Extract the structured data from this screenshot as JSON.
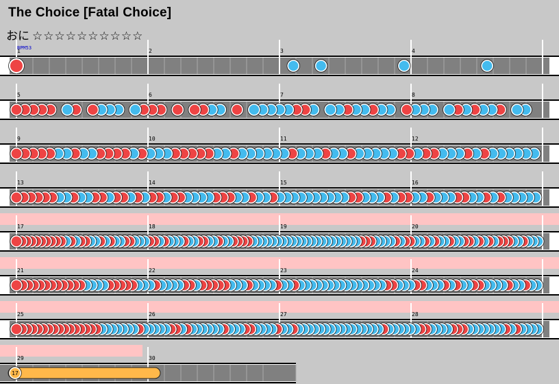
{
  "song": {
    "title": "The Choice [Fatal Choice]",
    "course_label": "おに",
    "difficulty_stars": "☆☆☆☆☆☆☆☆☆☆",
    "bpm_label": "BPM53"
  },
  "measure_numbers": [
    "1",
    "2",
    "3",
    "4",
    "5",
    "6",
    "7",
    "8",
    "9",
    "10",
    "11",
    "12",
    "13",
    "14",
    "15",
    "16",
    "17",
    "18",
    "19",
    "20",
    "21",
    "22",
    "23",
    "24",
    "25",
    "26",
    "27",
    "28",
    "29",
    "30"
  ],
  "gogo_rows": [
    4,
    5,
    6,
    7
  ],
  "colors": {
    "don": "#ee4444",
    "ka": "#44bbee",
    "lane": "#808080",
    "gogo": "#ffc4c4",
    "drumroll": "#ffb84a",
    "background": "#c8c8c8"
  },
  "drumroll": {
    "label": "17"
  },
  "rows": [
    {
      "big_don": 1,
      "notes": "__________kk__k__k_"
    },
    {
      "notes": "ddddd_kd_dkkk_kddd_d_ddkk_d_kkkkkddk_kkdkkdkk_dkkk_kdkdkkd_kk_"
    },
    {
      "notes": "dddddkkdkkddddkdkkkdddddkkdkkkkkkdkkkdkkdkkkkkddkddkkkdkdkkkkkk"
    },
    {
      "notes": "ddddddkkdkkddkddkdkddkddkkkkdddkkdkkdkkkkkkkkkkddkkkdkddkkdkkkddkkdkdkkkkk"
    },
    {
      "notes": "ddddddddddkdkddkkdkdkkddkkkddkdkkkdkkddkkdkkddddkkkkkkkkkkkkkkkkkkkkkkdddkkkkdkddkkdkdkkdkkddkdkdkdddkkdkkk"
    },
    {
      "notes": "ddddddddddddkkkkdddddkkkdkkkkddkdddddkkkdkkkkdkkdkkkkkkkkkkkkkkkddkkkddkkkdkdkkddkkkkdkkdkk"
    },
    {
      "notes": "ddddddddddddddddkkkkkkkdkkkkkddkdkkkkkkdkkkddkkkkdkkdkkkkkkkkkkkkkkkkdkkkkkkddkkkkdddkkkkkkkdkdkkkk"
    }
  ]
}
